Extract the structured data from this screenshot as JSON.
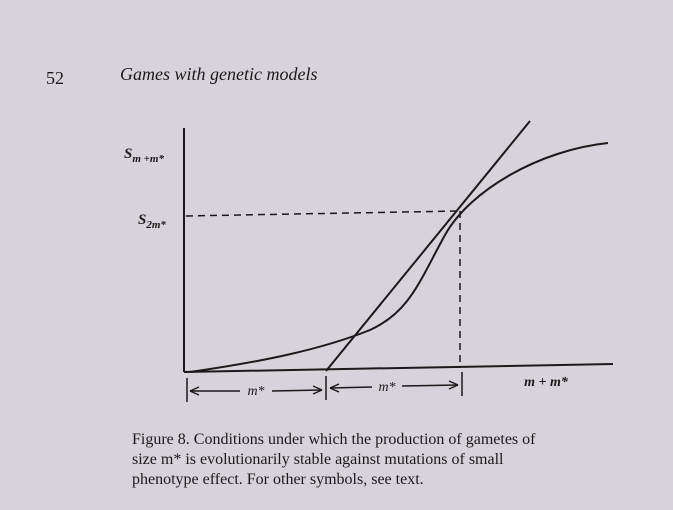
{
  "header": {
    "page_number": "52",
    "running_head": "Games with genetic models"
  },
  "figure": {
    "y_labels": [
      {
        "base": "S",
        "sub": "m +m*"
      },
      {
        "base": "S",
        "sub": "2m*"
      }
    ],
    "x_labels": [
      "m*",
      "m*",
      "m + m*"
    ]
  },
  "caption": {
    "lines": [
      "Figure 8. Conditions under which the production of gametes of",
      "size m* is evolutionarily stable against mutations of small",
      "phenotype effect. For other symbols, see text."
    ]
  }
}
